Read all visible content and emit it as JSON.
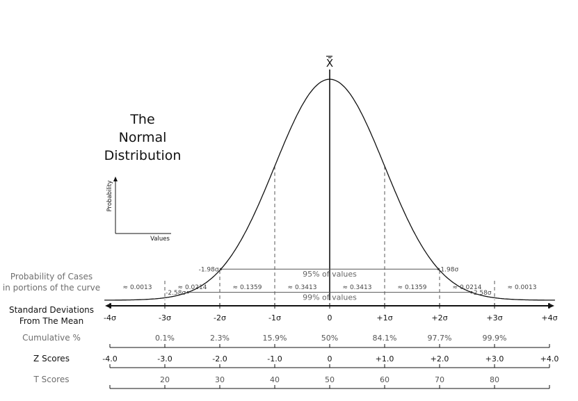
{
  "title_lines": [
    "The",
    "Normal",
    "Distribution"
  ],
  "mean_symbol": "X̄",
  "inset": {
    "y_label": "Probability",
    "x_label": "Values"
  },
  "intervals": [
    {
      "label": "95% of values",
      "left": "-1.98σ",
      "right": "1.98σ",
      "z": 1.98
    },
    {
      "label": "99% of values",
      "left": "-2.58σ",
      "right": "2.58σ",
      "z": 2.58
    }
  ],
  "probability_row": {
    "label_lines": [
      "Probability of Cases",
      "in portions of the curve"
    ],
    "values": [
      "≈ 0.0013",
      "≈ 0.0214",
      "≈ 0.1359",
      "≈ 0.3413",
      "≈ 0.3413",
      "≈ 0.1359",
      "≈ 0.0214",
      "≈ 0.0013"
    ]
  },
  "sd_row": {
    "label_lines": [
      "Standard Deviations",
      "From The Mean"
    ],
    "ticks": [
      -4,
      -3,
      -2,
      -1,
      0,
      1,
      2,
      3,
      4
    ],
    "labels": [
      "-4σ",
      "-3σ",
      "-2σ",
      "-1σ",
      "0",
      "+1σ",
      "+2σ",
      "+3σ",
      "+4σ"
    ]
  },
  "cumulative_row": {
    "label": "Cumulative %",
    "ticks": [
      -3,
      -2,
      -1,
      0,
      1,
      2,
      3
    ],
    "labels": [
      "0.1%",
      "2.3%",
      "15.9%",
      "50%",
      "84.1%",
      "97.7%",
      "99.9%"
    ]
  },
  "z_row": {
    "label": "Z Scores",
    "ticks": [
      -4,
      -3,
      -2,
      -1,
      0,
      1,
      2,
      3,
      4
    ],
    "labels": [
      "-4.0",
      "-3.0",
      "-2.0",
      "-1.0",
      "0",
      "+1.0",
      "+2.0",
      "+3.0",
      "+4.0"
    ]
  },
  "t_row": {
    "label": "T Scores",
    "ticks": [
      -3,
      -2,
      -1,
      0,
      1,
      2,
      3
    ],
    "labels": [
      "20",
      "30",
      "40",
      "50",
      "60",
      "70",
      "80"
    ]
  }
}
